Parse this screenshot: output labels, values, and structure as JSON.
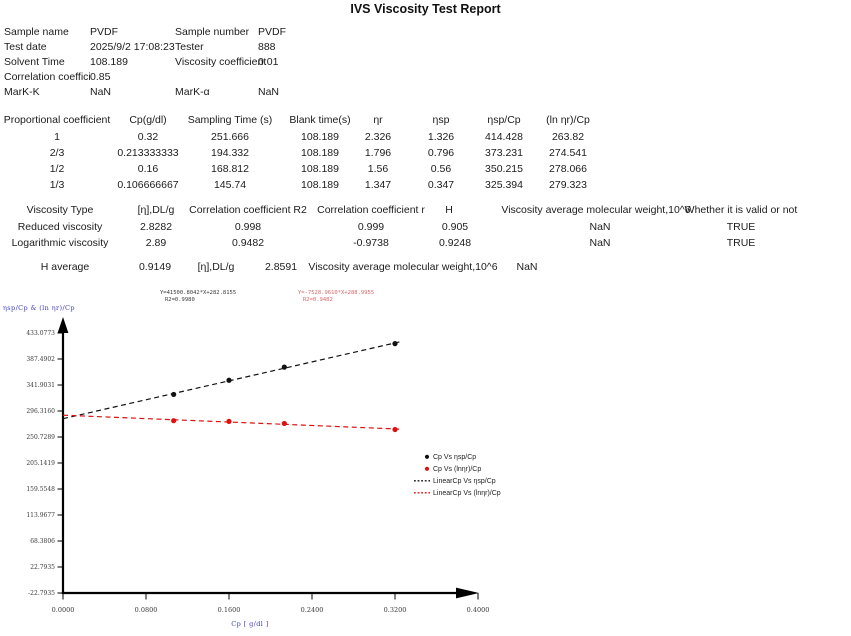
{
  "title": "IVS Viscosity Test Report",
  "info": {
    "rows": [
      {
        "l1": "Sample name",
        "v1": "PVDF",
        "l2": "Sample number",
        "v2": "PVDF"
      },
      {
        "l1": "Test date",
        "v1": "2025/9/2 17:08:23",
        "l2": "Tester",
        "v2": "888"
      },
      {
        "l1": "Solvent Time",
        "v1": "108.189",
        "l2": "Viscosity coefficient",
        "v2": "0.01"
      },
      {
        "l1": "Correlation coefficient",
        "v1": "0.85",
        "l2": "",
        "v2": ""
      },
      {
        "l1": "MarK-K",
        "v1": "NaN",
        "l2": "MarK-α",
        "v2": "NaN"
      }
    ]
  },
  "measurement_table": {
    "headers": [
      "Proportional coefficient",
      "Cp(g/dl)",
      "Sampling Time  (s)",
      "Blank time(s)",
      "ηr",
      "ηsp",
      "ηsp/Cp",
      "(ln ηr)/Cp"
    ],
    "rows": [
      [
        "1",
        "0.32",
        "251.666",
        "108.189",
        "2.326",
        "1.326",
        "414.428",
        "263.82"
      ],
      [
        "2/3",
        "0.213333333",
        "194.332",
        "108.189",
        "1.796",
        "0.796",
        "373.231",
        "274.541"
      ],
      [
        "1/2",
        "0.16",
        "168.812",
        "108.189",
        "1.56",
        "0.56",
        "350.215",
        "278.066"
      ],
      [
        "1/3",
        "0.106666667",
        "145.74",
        "108.189",
        "1.347",
        "0.347",
        "325.394",
        "279.323"
      ]
    ]
  },
  "viscosity_table": {
    "headers": [
      "Viscosity Type",
      "[η],DL/g",
      "Correlation coefficient R2",
      "Correlation coefficient r",
      "H",
      "Viscosity average molecular weight,10^6",
      "Whether it is valid or not"
    ],
    "rows": [
      [
        "Reduced viscosity",
        "2.8282",
        "0.998",
        "0.999",
        "0.905",
        "NaN",
        "TRUE"
      ],
      [
        "Logarithmic viscosity",
        "2.89",
        "0.9482",
        "-0.9738",
        "0.9248",
        "NaN",
        "TRUE"
      ]
    ]
  },
  "summary": {
    "h_label": "H average",
    "h_value": "0.9149",
    "eta_label": "[η],DL/g",
    "eta_value": "2.8591",
    "mw_label": "Viscosity average molecular weight,10^6",
    "mw_value": "NaN"
  },
  "chart_data": {
    "type": "scatter",
    "title": "",
    "xlabel": "Cp [ g/dl ]",
    "ylabel": "ηsp/Cp & (ln ηr)/Cp",
    "xlim": [
      0,
      0.4
    ],
    "ylim": [
      -22.7935,
      433.0773
    ],
    "x_tick_labels": [
      "0.0000",
      "0.0800",
      "0.1600",
      "0.2400",
      "0.3200",
      "0.4000"
    ],
    "y_tick_labels": [
      "433.0773",
      "387.4902",
      "341.9031",
      "296.3160",
      "250.7289",
      "205.1419",
      "159.5548",
      "113.9677",
      "68.3806",
      "22.7935",
      "-22.7935"
    ],
    "grid": false,
    "legend_position": "middle-right",
    "series": [
      {
        "name": "Cp Vs ηsp/Cp",
        "type": "scatter",
        "color": "#111111",
        "x": [
          0.106666667,
          0.16,
          0.213333333,
          0.32
        ],
        "y": [
          325.394,
          350.215,
          373.231,
          414.428
        ]
      },
      {
        "name": "Cp Vs (lnηr)/Cp",
        "type": "scatter",
        "color": "#dd1111",
        "x": [
          0.106666667,
          0.16,
          0.213333333,
          0.32
        ],
        "y": [
          279.323,
          278.066,
          274.541,
          263.82
        ]
      }
    ],
    "fit_lines": [
      {
        "name": "LinearCp Vs ηsp/Cp",
        "color": "#111111",
        "equation": "Y=41500.8042*X+282.8155",
        "r2": "R2=0.9980",
        "slope_per_gdl": 415.008042,
        "intercept": 282.8155,
        "x_range": [
          0,
          0.325
        ]
      },
      {
        "name": "LinearCp Vs (lnηr)/Cp",
        "color": "#dd1111",
        "equation": "Y=-7528.9610*X+288.9955",
        "r2": "R2=0.9482",
        "slope_per_gdl": -75.2896,
        "intercept": 288.9955,
        "x_range": [
          0,
          0.325
        ]
      }
    ],
    "legend": [
      "Cp Vs ηsp/Cp",
      "Cp Vs (lnηr)/Cp",
      "LinearCp Vs ηsp/Cp",
      "LinearCp Vs (lnηr)/Cp"
    ]
  },
  "colors": {
    "axis_label_blue": "#3e3ec6",
    "series_black": "#111111",
    "series_red": "#dd1111",
    "fit_black_text": "#3a3a3a",
    "fit_red_text": "#d96868"
  }
}
